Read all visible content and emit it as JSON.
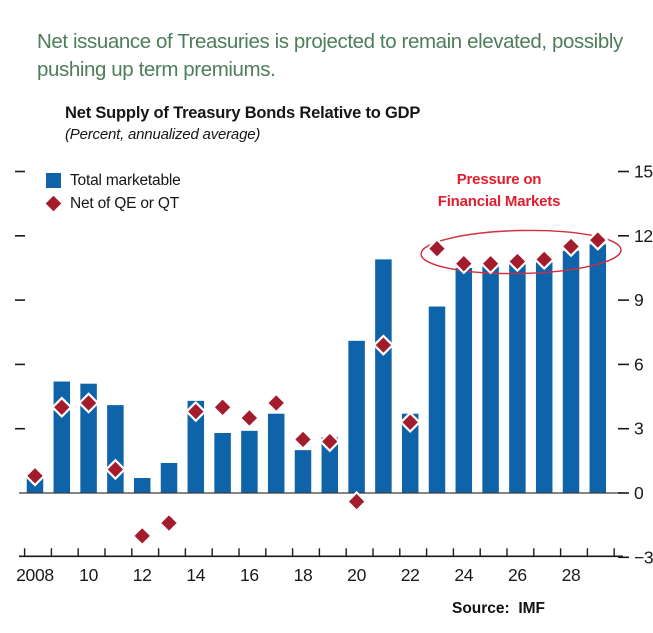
{
  "headline": "Net issuance of Treasuries is projected to remain elevated, possibly pushing up term premiums.",
  "source": {
    "prefix": "Source:",
    "value": "IMF"
  },
  "colors": {
    "headline_green": "#4e7e59",
    "bar_blue": "#0e63a9",
    "diamond_red": "#a31c2c",
    "annotation_red": "#e11d2e",
    "ellipse_red": "#cf2f3f",
    "axis_black": "#1a1a1a",
    "zero_line_gray": "#3c3c3c"
  },
  "chart_data": {
    "type": "bar",
    "title": "Net Supply of Treasury Bonds Relative to GDP",
    "subtitle": "(Percent, annualized average)",
    "categories": [
      2008,
      2009,
      2010,
      2011,
      2012,
      2013,
      2014,
      2015,
      2016,
      2017,
      2018,
      2019,
      2020,
      2021,
      2022,
      2023,
      2024,
      2025,
      2026,
      2027,
      2028,
      2029
    ],
    "series": [
      {
        "name": "Total marketable",
        "type": "bar",
        "values": [
          0.7,
          5.2,
          5.1,
          4.1,
          0.7,
          1.4,
          4.3,
          2.8,
          2.9,
          3.7,
          2.0,
          2.6,
          7.1,
          10.9,
          3.7,
          8.7,
          10.5,
          10.6,
          10.7,
          10.8,
          11.3,
          11.6
        ]
      },
      {
        "name": "Net of QE or QT",
        "type": "scatter",
        "marker": "diamond",
        "values": [
          0.8,
          4.0,
          4.2,
          1.1,
          -2.0,
          -1.4,
          3.8,
          4.0,
          3.5,
          4.2,
          2.5,
          2.4,
          -0.4,
          6.9,
          3.3,
          11.4,
          10.7,
          10.7,
          10.8,
          10.9,
          11.5,
          11.8
        ]
      }
    ],
    "ylim": [
      -3,
      15
    ],
    "yticks": [
      15,
      12,
      9,
      6,
      3,
      0,
      -3
    ],
    "ytick_labels": [
      "15",
      "12",
      "9",
      "6",
      "3",
      "0",
      "−3"
    ],
    "left_dash_values": [
      15,
      12,
      9,
      6,
      3
    ],
    "x_tick_labels": [
      "2008",
      "10",
      "12",
      "14",
      "16",
      "18",
      "20",
      "22",
      "24",
      "26",
      "28"
    ],
    "grid": false,
    "legend_position": "top-left",
    "ylabel_side": "right",
    "annotation": {
      "line1": "Pressure on",
      "line2": "Financial Markets",
      "highlight_years": [
        2023,
        2024,
        2025,
        2026,
        2027,
        2028,
        2029
      ]
    }
  }
}
